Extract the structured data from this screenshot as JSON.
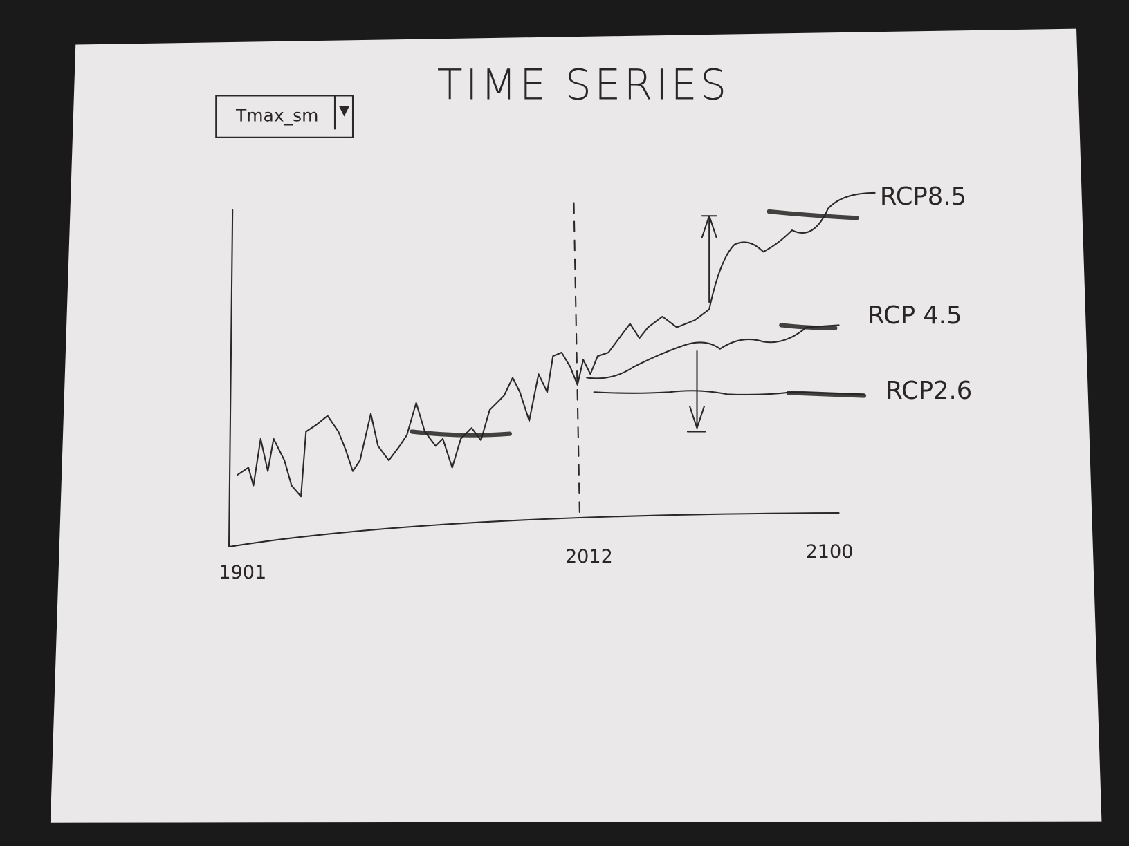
{
  "header": {
    "title": "TIME SERIES"
  },
  "dropdown": {
    "selected": "Tmax_sm"
  },
  "x_axis": {
    "labels": [
      "1901",
      "2012",
      "2100"
    ]
  },
  "scenarios": [
    {
      "label": "RCP8.5"
    },
    {
      "label": "RCP 4.5"
    },
    {
      "label": "RCP2.6"
    }
  ]
}
